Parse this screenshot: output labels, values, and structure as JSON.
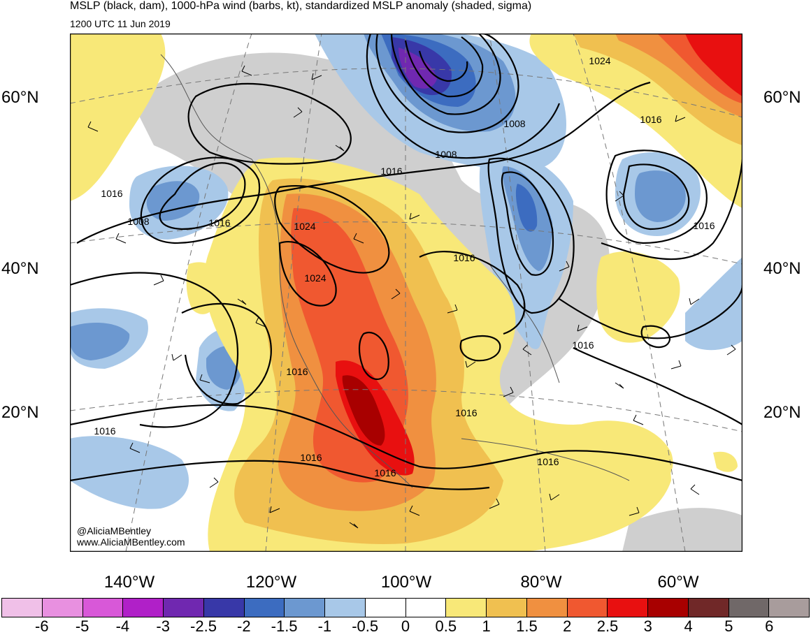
{
  "title": "MSLP (black, dam), 1000-hPa wind (barbs, kt), standardized MSLP anomaly (shaded, sigma)",
  "valid_time": "1200 UTC 11 Jun 2019",
  "credits": [
    "@AliciaMBentley",
    "www.AliciaMBentley.com"
  ],
  "lat_labels": [
    "60°N",
    "40°N",
    "20°N"
  ],
  "lon_labels": [
    "140°W",
    "120°W",
    "100°W",
    "80°W",
    "60°W"
  ],
  "colorbar": {
    "colors": [
      "#f0c0e8",
      "#e890e0",
      "#d858d8",
      "#b020c8",
      "#7028b0",
      "#3838a8",
      "#3c6cc0",
      "#6c98d0",
      "#a8c8e8",
      "#ffffff",
      "#ffffff",
      "#f8e878",
      "#f0c050",
      "#f09040",
      "#f05830",
      "#e81010",
      "#a80000",
      "#702828",
      "#706868",
      "#a89c9c"
    ],
    "ticks": [
      "-6",
      "-5",
      "-4",
      "-3",
      "-2.5",
      "-2",
      "-1.5",
      "-1",
      "-0.5",
      "0",
      "0.5",
      "1",
      "1.5",
      "2",
      "2.5",
      "3",
      "4",
      "5",
      "6"
    ]
  },
  "isobar_labels": [
    "1024",
    "1016",
    "1008",
    "1016",
    "1008",
    "1016",
    "1016",
    "1024",
    "1024",
    "1016",
    "1016",
    "1016",
    "1016",
    "1016",
    "1008",
    "1016",
    "1016",
    "1016",
    "1016"
  ]
}
